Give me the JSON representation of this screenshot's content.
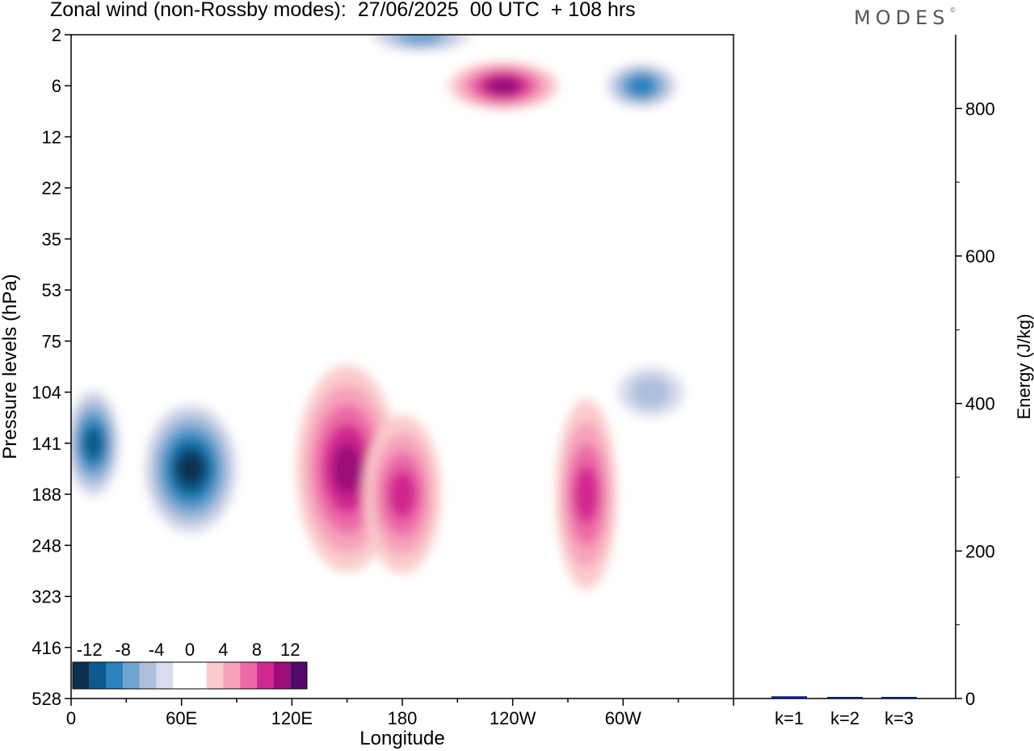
{
  "title": "Zonal wind (non-Rossby modes):  27/06/2025  00 UTC  + 108 hrs",
  "logo": "MODES",
  "chart_data": [
    {
      "type": "heatmap",
      "title": "Zonal wind (non-Rossby modes):  27/06/2025  00 UTC  + 108 hrs",
      "xlabel": "Longitude",
      "ylabel": "Pressure levels (hPa)",
      "x_ticks": [
        "0",
        "60E",
        "120E",
        "180",
        "120W",
        "60W"
      ],
      "x_tick_values": [
        0,
        60,
        120,
        180,
        240,
        300
      ],
      "xlim": [
        0,
        360
      ],
      "y_ticks": [
        "2",
        "6",
        "12",
        "22",
        "35",
        "53",
        "75",
        "104",
        "141",
        "188",
        "248",
        "323",
        "416",
        "528"
      ],
      "y_scale": "categorical-levels (top to bottom)",
      "colorbar": {
        "labels": [
          "-12",
          "-8",
          "-4",
          "0",
          "4",
          "8",
          "12"
        ],
        "colors": [
          "#0c3050",
          "#0b5b8c",
          "#2a83bd",
          "#6fa4cf",
          "#aebfdc",
          "#d9dcec",
          "#ffffff",
          "#ffffff",
          "#f9cccb",
          "#f6a2bb",
          "#ec6aa7",
          "#d1288f",
          "#9c0d7a",
          "#55086b"
        ],
        "location": "lower-left"
      },
      "features": [
        {
          "sign": "negative",
          "lon": 65,
          "level": "141-188",
          "peak": -14
        },
        {
          "sign": "negative",
          "lon": 12,
          "level": "141",
          "peak": -12
        },
        {
          "sign": "positive",
          "lon": 150,
          "level": "141-188",
          "peak": 10
        },
        {
          "sign": "positive",
          "lon": 180,
          "level": "188",
          "peak": 8
        },
        {
          "sign": "positive",
          "lon": 280,
          "level": "188",
          "peak": 8
        },
        {
          "sign": "negative",
          "lon": 315,
          "level": "104",
          "peak": -6
        },
        {
          "sign": "negative",
          "lon": 190,
          "level": "2",
          "peak": -8
        },
        {
          "sign": "negative",
          "lon": 310,
          "level": "6",
          "peak": -9
        },
        {
          "sign": "positive",
          "lon": 235,
          "level": "6",
          "peak": 10
        }
      ]
    },
    {
      "type": "bar",
      "categories": [
        "k=1",
        "k=2",
        "k=3"
      ],
      "values": [
        3,
        1.5,
        0.5
      ],
      "ylabel": "Energy (J/kg)",
      "ylim": [
        0,
        900
      ],
      "y_ticks": [
        0,
        200,
        400,
        600,
        800
      ],
      "color": "#0a1f7a"
    }
  ]
}
